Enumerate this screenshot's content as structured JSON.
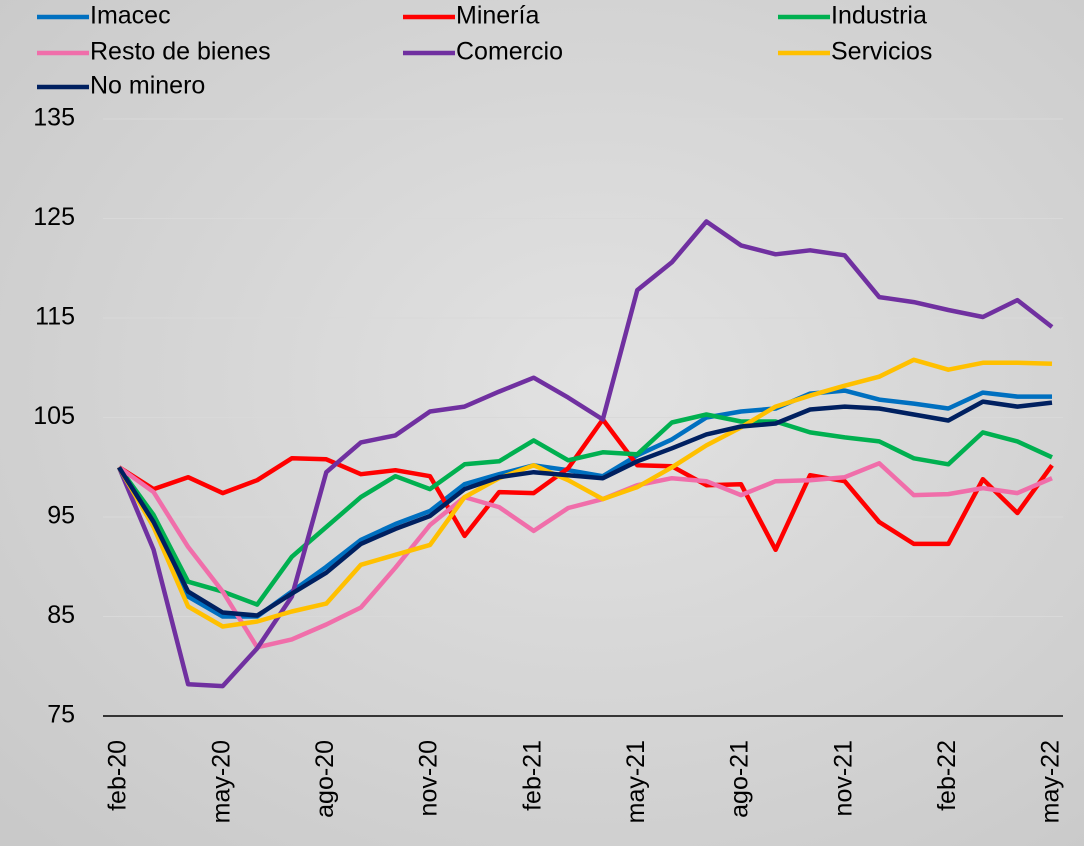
{
  "chart_data": {
    "type": "line",
    "categories": [
      "feb-20",
      null,
      null,
      "may-20",
      null,
      null,
      "ago-20",
      null,
      null,
      "nov-20",
      null,
      null,
      "feb-21",
      null,
      null,
      "may-21",
      null,
      null,
      "ago-21",
      null,
      null,
      "nov-21",
      null,
      null,
      "feb-22",
      null,
      null,
      "may-22"
    ],
    "series": [
      {
        "name": "Imacec",
        "color": "#0070c0",
        "values": [
          100,
          95,
          87,
          85,
          85,
          87.5,
          90,
          92.7,
          94.3,
          95.6,
          98.3,
          99.3,
          100.2,
          99.7,
          99.1,
          101.2,
          102.8,
          105,
          105.6,
          105.9,
          107.4,
          107.7,
          106.8,
          106.4,
          105.9,
          107.5,
          107.1,
          107.1
        ]
      },
      {
        "name": "Minería",
        "color": "#ff0000",
        "values": [
          100,
          97.8,
          99,
          97.4,
          98.7,
          100.9,
          100.8,
          99.3,
          99.7,
          99.1,
          93.1,
          97.5,
          97.4,
          99.9,
          104.8,
          100.2,
          100.1,
          98.2,
          98.3,
          91.7,
          99.2,
          98.6,
          94.5,
          92.3,
          92.3,
          98.8,
          95.4,
          100.2
        ]
      },
      {
        "name": "Industria",
        "color": "#00b050",
        "values": [
          100,
          95.2,
          88.5,
          87.5,
          86.2,
          91,
          94,
          97,
          99.1,
          97.8,
          100.3,
          100.6,
          102.7,
          100.7,
          101.5,
          101.3,
          104.5,
          105.3,
          104.6,
          104.6,
          103.5,
          103,
          102.6,
          100.9,
          100.3,
          103.5,
          102.6,
          101
        ]
      },
      {
        "name": "Resto de bienes",
        "color": "#f06eaa",
        "values": [
          100,
          97.5,
          92,
          87.5,
          81.9,
          82.7,
          84.2,
          85.9,
          89.9,
          94.2,
          97,
          96,
          93.6,
          95.9,
          96.8,
          98.2,
          98.9,
          98.6,
          97.2,
          98.6,
          98.7,
          99,
          100.4,
          97.2,
          97.3,
          97.9,
          97.4,
          98.9
        ]
      },
      {
        "name": "Comercio",
        "color": "#7030a0",
        "values": [
          100,
          91.7,
          78.2,
          78,
          81.8,
          87,
          99.5,
          102.5,
          103.2,
          105.6,
          106.1,
          107.6,
          109,
          107,
          104.8,
          117.8,
          120.6,
          124.7,
          122.3,
          121.4,
          121.8,
          121.3,
          117.1,
          116.6,
          115.8,
          115.1,
          116.8,
          114.1
        ]
      },
      {
        "name": "Servicios",
        "color": "#ffc000",
        "values": [
          100,
          94,
          86,
          84,
          84.5,
          85.5,
          86.3,
          90.2,
          91.2,
          92.2,
          97,
          98.9,
          100.2,
          98.7,
          96.8,
          98,
          100,
          102.2,
          104,
          106.1,
          107.2,
          108.2,
          109.1,
          110.8,
          109.8,
          110.5,
          110.5,
          110.4
        ]
      },
      {
        "name": "No minero",
        "color": "#002060",
        "values": [
          100,
          94.5,
          87.5,
          85.4,
          85.1,
          87.3,
          89.4,
          92.3,
          93.8,
          95.1,
          97.8,
          99,
          99.5,
          99.2,
          98.9,
          100.6,
          101.9,
          103.3,
          104.1,
          104.4,
          105.8,
          106.1,
          105.9,
          105.3,
          104.7,
          106.6,
          106.1,
          106.5
        ]
      }
    ],
    "ylim": [
      75,
      135
    ],
    "yticks": [
      75,
      85,
      95,
      105,
      115,
      125,
      135
    ],
    "grid": true
  }
}
